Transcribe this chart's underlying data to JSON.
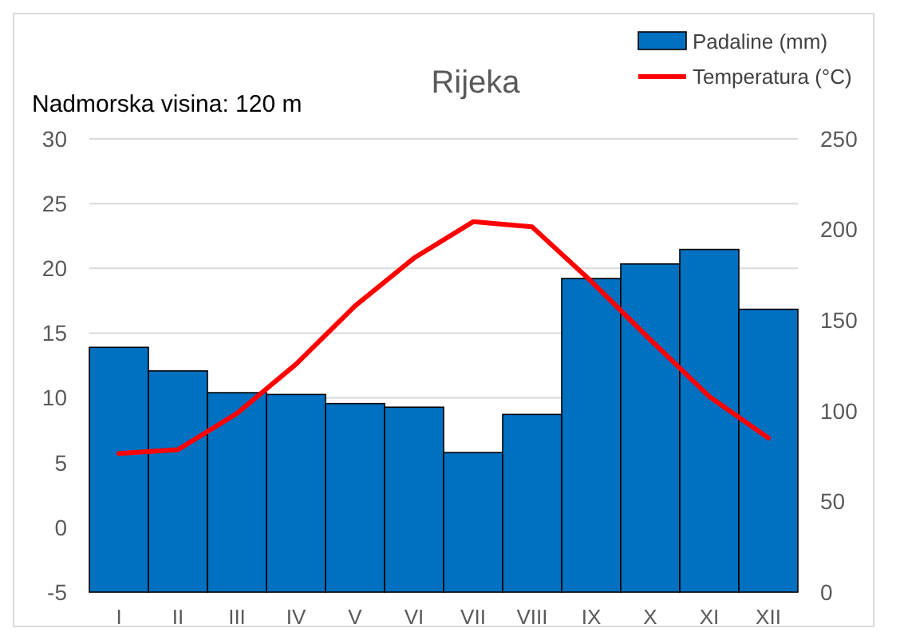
{
  "chart_data": {
    "type": "bar",
    "title": "Rijeka",
    "categories": [
      "I",
      "II",
      "III",
      "IV",
      "V",
      "VI",
      "VII",
      "VIII",
      "IX",
      "X",
      "XI",
      "XII"
    ],
    "series": [
      {
        "name": "Padaline (mm)",
        "axis": "y2",
        "color": "#0070c0",
        "values": [
          135,
          122,
          110,
          109,
          104,
          102,
          77,
          98,
          173,
          181,
          189,
          156
        ]
      },
      {
        "name": "Temperatura (°C)",
        "type": "line",
        "axis": "y",
        "color": "#ff0000",
        "values": [
          5.7,
          6.0,
          8.8,
          12.6,
          17.1,
          20.8,
          23.6,
          23.2,
          19.0,
          14.5,
          10.1,
          6.9
        ]
      }
    ],
    "ylim": [
      -5,
      30
    ],
    "yticks": [
      -5,
      0,
      5,
      10,
      15,
      20,
      25,
      30
    ],
    "y2lim": [
      0,
      250
    ],
    "y2ticks": [
      0,
      50,
      100,
      150,
      200,
      250
    ],
    "grid": "y",
    "legend": "top right",
    "annotations": [
      "Nadmorska visina: 120 m"
    ]
  }
}
